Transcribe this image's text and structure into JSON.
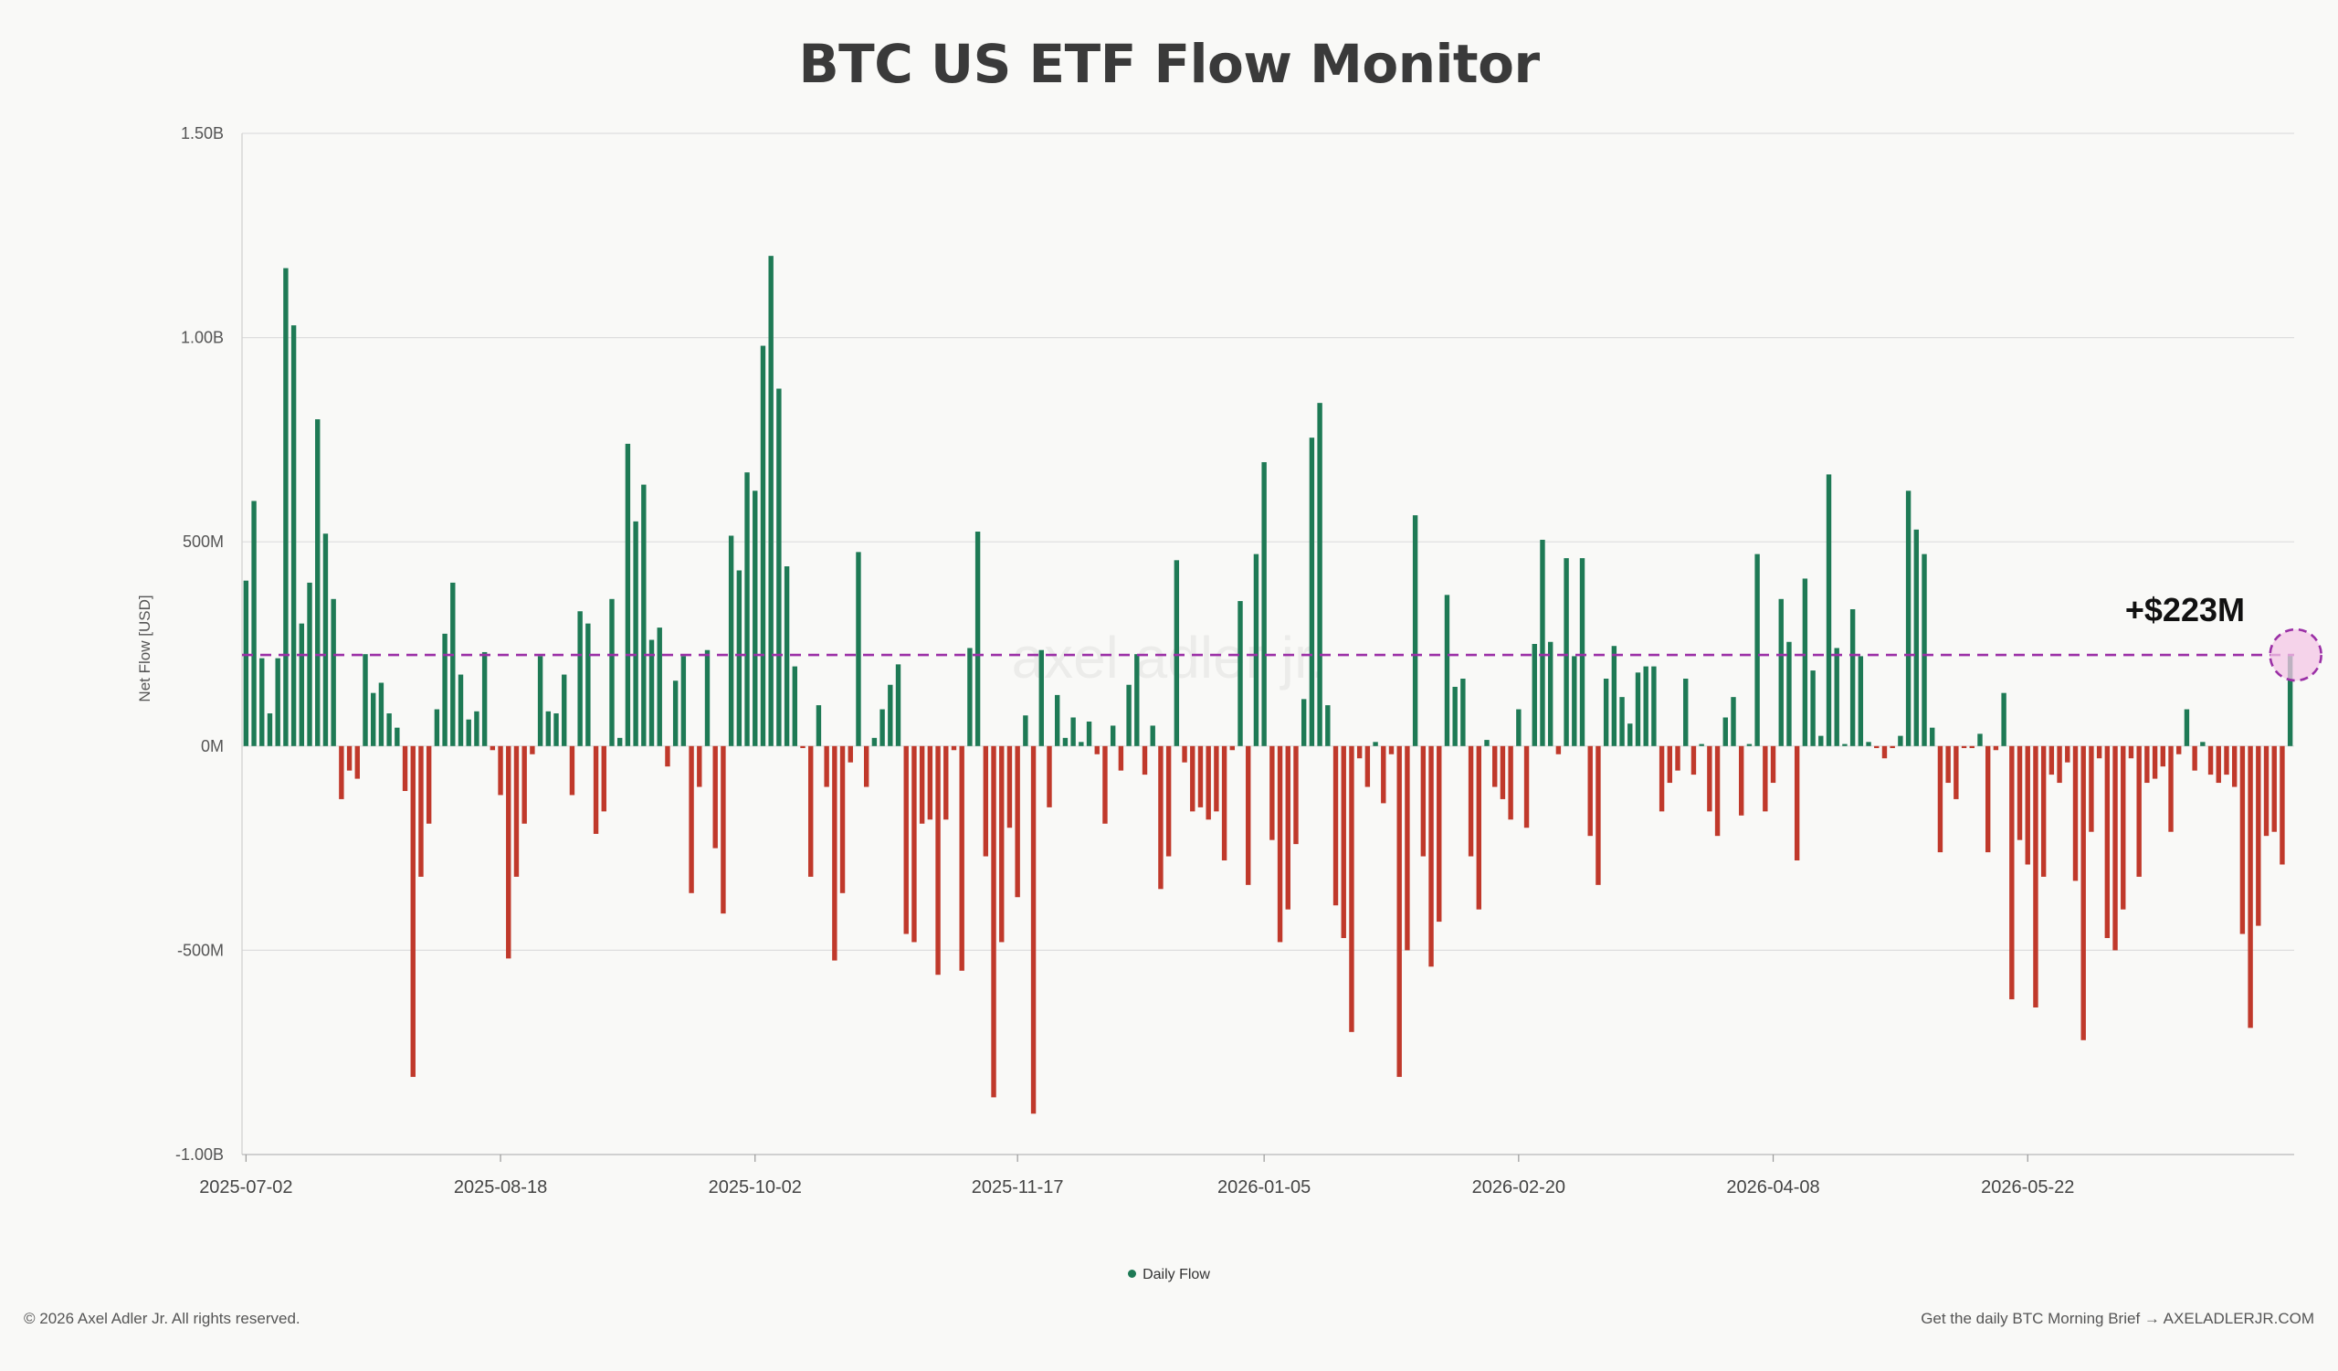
{
  "title": "BTC US ETF Flow Monitor",
  "footer_left": "© 2026 Axel Adler Jr. All rights reserved.",
  "footer_right": "Get the daily BTC Morning Brief → AXELADLERJR.COM",
  "watermark": "axel adler jr.",
  "colors": {
    "positive": "#1e7a55",
    "negative": "#c0392b",
    "reference": "#9b30a6",
    "grid": "#dedede"
  },
  "chart_data": {
    "type": "bar",
    "ylabel": "Net Flow [USD]",
    "ylim": [
      -1000,
      1500
    ],
    "unit": "USD millions",
    "yticks": [
      {
        "value": 1500,
        "label": "1.50B"
      },
      {
        "value": 1000,
        "label": "1.00B"
      },
      {
        "value": 500,
        "label": "500M"
      },
      {
        "value": 0,
        "label": "0M"
      },
      {
        "value": -500,
        "label": "-500M"
      },
      {
        "value": -1000,
        "label": "-1.00B"
      }
    ],
    "xticks": [
      {
        "index": 0,
        "label": "2025-07-02"
      },
      {
        "index": 32,
        "label": "2025-08-18"
      },
      {
        "index": 64,
        "label": "2025-10-02"
      },
      {
        "index": 97,
        "label": "2025-11-17"
      },
      {
        "index": 128,
        "label": "2026-01-05"
      },
      {
        "index": 160,
        "label": "2026-02-20"
      },
      {
        "index": 192,
        "label": "2026-04-08"
      },
      {
        "index": 224,
        "label": "2026-05-22"
      }
    ],
    "legend": "Daily Flow",
    "legend_position": "bottom",
    "grid": true,
    "reference_line": {
      "value": 223,
      "label": "+$223M",
      "style": "dashed"
    },
    "values": [
      405,
      600,
      215,
      80,
      215,
      1170,
      1030,
      300,
      400,
      800,
      520,
      360,
      -130,
      -60,
      -80,
      225,
      130,
      155,
      80,
      45,
      -110,
      -810,
      -320,
      -190,
      90,
      275,
      400,
      175,
      65,
      85,
      230,
      -10,
      -120,
      -520,
      -320,
      -190,
      -20,
      220,
      85,
      80,
      175,
      -120,
      330,
      300,
      -215,
      -160,
      360,
      20,
      740,
      550,
      640,
      260,
      290,
      -50,
      160,
      220,
      -360,
      -100,
      235,
      -250,
      -410,
      515,
      430,
      670,
      625,
      980,
      1200,
      875,
      440,
      195,
      -5,
      -320,
      100,
      -100,
      -525,
      -360,
      -40,
      475,
      -100,
      20,
      90,
      150,
      200,
      -460,
      -480,
      -190,
      -180,
      -560,
      -180,
      -10,
      -550,
      240,
      525,
      -270,
      -860,
      -480,
      -200,
      -370,
      75,
      -900,
      235,
      -150,
      125,
      20,
      70,
      10,
      60,
      -20,
      -190,
      50,
      -60,
      150,
      225,
      -70,
      50,
      -350,
      -270,
      455,
      -40,
      -160,
      -150,
      -180,
      -160,
      -280,
      -10,
      355,
      -340,
      470,
      695,
      -230,
      -480,
      -400,
      -240,
      115,
      755,
      840,
      100,
      -390,
      -470,
      -700,
      -30,
      -100,
      10,
      -140,
      -20,
      -810,
      -500,
      565,
      -270,
      -540,
      -430,
      370,
      145,
      165,
      -270,
      -400,
      15,
      -100,
      -130,
      -180,
      90,
      -200,
      250,
      505,
      255,
      -20,
      460,
      220,
      460,
      -220,
      -340,
      165,
      245,
      120,
      55,
      180,
      195,
      195,
      -160,
      -90,
      -60,
      165,
      -70,
      5,
      -160,
      -220,
      70,
      120,
      -170,
      5,
      470,
      -160,
      -90,
      360,
      255,
      -280,
      410,
      185,
      25,
      665,
      240,
      5,
      335,
      220,
      10,
      -5,
      -30,
      -5,
      25,
      625,
      530,
      470,
      45,
      -260,
      -90,
      -130,
      -5,
      -5,
      30,
      -260,
      -10,
      130,
      -620,
      -230,
      -290,
      -640,
      -320,
      -70,
      -90,
      -40,
      -330,
      -720,
      -210,
      -30,
      -470,
      -500,
      -400,
      -30,
      -320,
      -90,
      -80,
      -50,
      -210,
      -20,
      90,
      -60,
      10,
      -70,
      -90,
      -70,
      -100,
      -460,
      -690,
      -440,
      -220,
      -210,
      -290,
      223
    ]
  }
}
